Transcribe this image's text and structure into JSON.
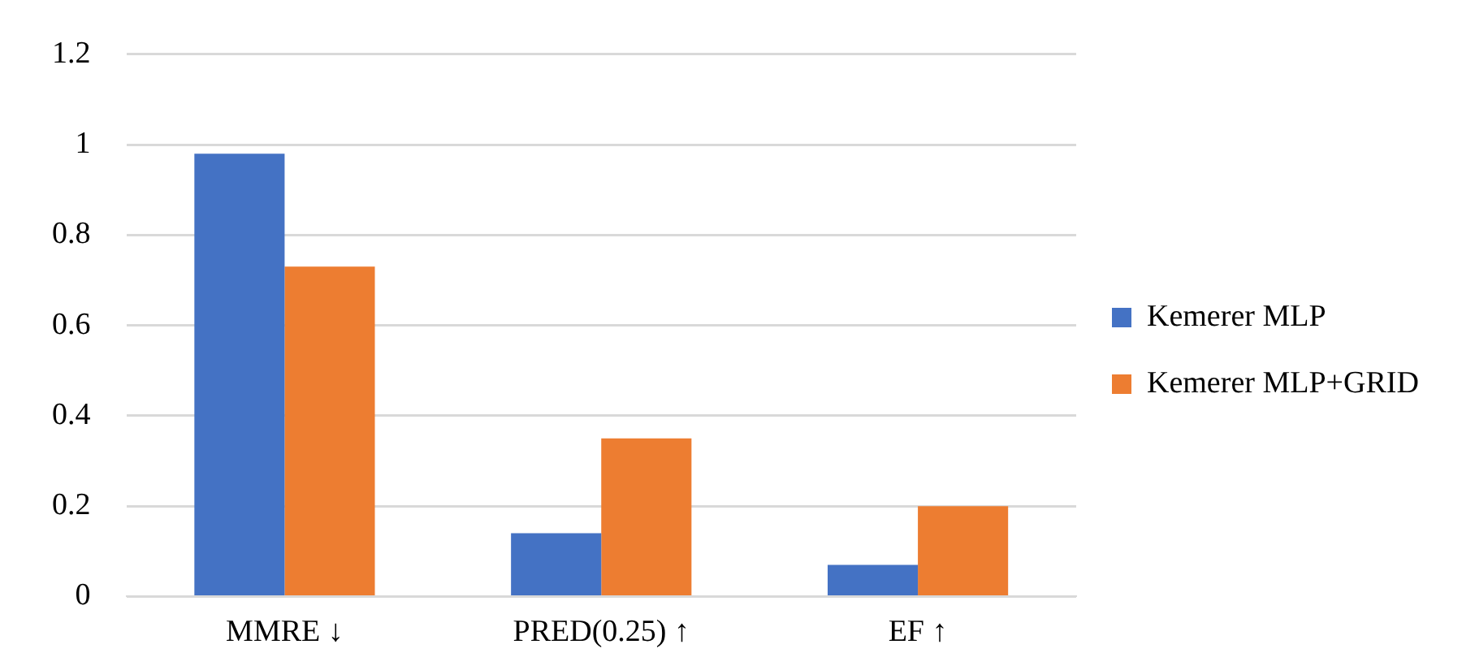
{
  "chart_data": {
    "type": "bar",
    "categories": [
      "MMRE ↓",
      "PRED(0.25) ↑",
      "EF ↑"
    ],
    "series": [
      {
        "name": "Kemerer MLP",
        "color": "#4472c4",
        "values": [
          0.98,
          0.14,
          0.07
        ]
      },
      {
        "name": "Kemerer MLP+GRID",
        "color": "#ed7d31",
        "values": [
          0.73,
          0.35,
          0.2
        ]
      }
    ],
    "ylim": [
      0,
      1.2
    ],
    "yticks": [
      0,
      0.2,
      0.4,
      0.6,
      0.8,
      1,
      1.2
    ],
    "grid": "y",
    "legend": "right"
  }
}
